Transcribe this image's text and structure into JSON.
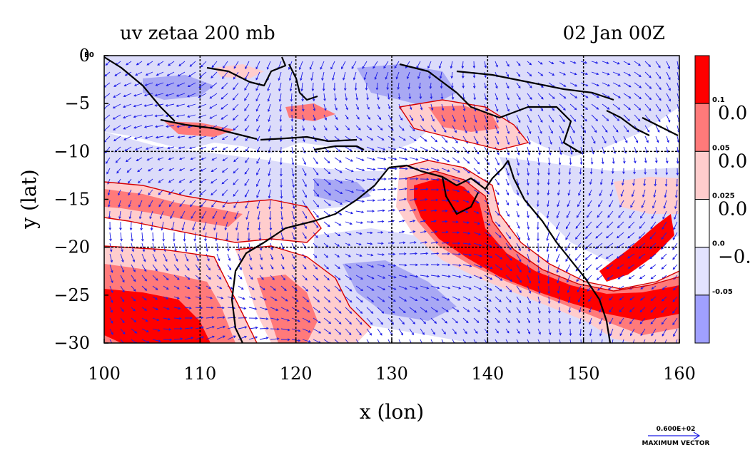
{
  "title_left": "uv zetaa 200 mb",
  "title_right": "02 Jan 00Z",
  "x_axis": {
    "label": "x (lon)",
    "min": 100,
    "max": 160,
    "ticks": [
      "100",
      "110",
      "120",
      "130",
      "140",
      "150",
      "160"
    ]
  },
  "y_axis": {
    "label": "y (lat)",
    "min": -30,
    "max": 0,
    "ticks": [
      "0",
      "−5",
      "−10",
      "−15",
      "−20",
      "−25",
      "−30"
    ]
  },
  "corner_label": "E0",
  "colorbar": {
    "small_labels": [
      "0.1",
      "0.05",
      "0.025",
      "0.0",
      "-0.05"
    ],
    "large_labels": [
      "0.0",
      "0.0",
      "0.0",
      "−0."
    ],
    "colors": [
      "#ff0000",
      "#ff7a7a",
      "#ffcdcd",
      "#ffffff",
      "#e3e3ff",
      "#a0a0ff"
    ]
  },
  "fill_colors": {
    "strong_pos": "#ff0000",
    "mid_pos": "#ff7a7a",
    "weak_pos": "#ffcdcd",
    "weak_neg": "#dcdcfa",
    "mid_neg": "#a8a8f4",
    "vector": "#1c1ce6",
    "contour": "#d60000",
    "coast": "#000000"
  },
  "max_vector": {
    "value": "0.600E+02",
    "label": "MAXIMUM VECTOR"
  }
}
